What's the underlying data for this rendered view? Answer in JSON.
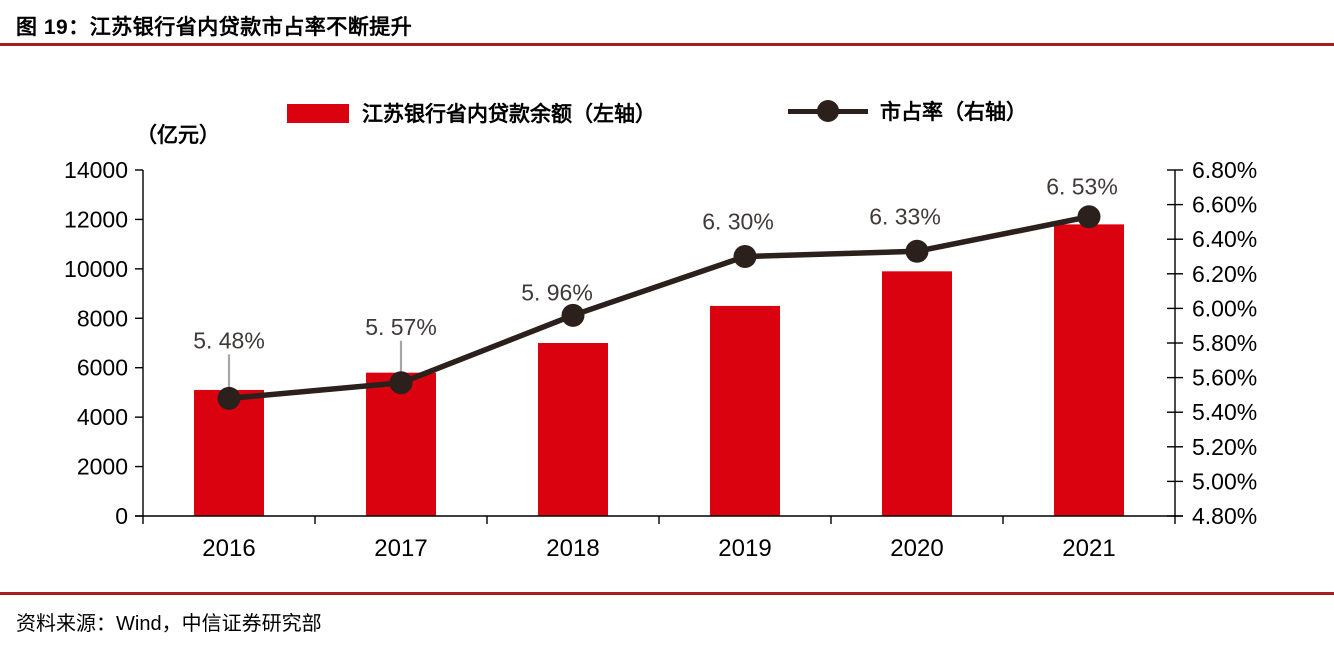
{
  "figure": {
    "title": "图 19：江苏银行省内贷款市占率不断提升",
    "source": "资料来源：Wind，中信证券研究部"
  },
  "colors": {
    "bar": "#da020f",
    "line": "#2b201b",
    "rule": "#a61e23",
    "value_label": "#3f3a39",
    "axis": "#000000",
    "leader": "#a6a6a6"
  },
  "chart_data": {
    "type": "bar",
    "combo": "bar+line",
    "title": "江苏银行省内贷款市占率不断提升",
    "categories": [
      "2016",
      "2017",
      "2018",
      "2019",
      "2020",
      "2021"
    ],
    "series": [
      {
        "name": "江苏银行省内贷款余额（左轴）",
        "type": "bar",
        "axis": "left",
        "values": [
          5100,
          5800,
          7000,
          8500,
          9900,
          11800
        ]
      },
      {
        "name": "市占率（右轴）",
        "type": "line",
        "axis": "right",
        "values": [
          5.48,
          5.57,
          5.96,
          6.3,
          6.33,
          6.53
        ],
        "point_labels": [
          "5. 48%",
          "5. 57%",
          "5. 96%",
          "6. 30%",
          "6. 33%",
          "6. 53%"
        ]
      }
    ],
    "left_axis": {
      "unit": "（亿元）",
      "min": 0,
      "max": 14000,
      "step": 2000,
      "tick_labels": [
        "0",
        "2000",
        "4000",
        "6000",
        "8000",
        "10000",
        "12000",
        "14000"
      ]
    },
    "right_axis": {
      "min": 4.8,
      "max": 6.8,
      "step": 0.2,
      "tick_labels": [
        "4.80%",
        "5.00%",
        "5.20%",
        "5.40%",
        "5.60%",
        "5.80%",
        "6.00%",
        "6.20%",
        "6.40%",
        "6.60%",
        "6.80%"
      ]
    },
    "legend": [
      {
        "label": "江苏银行省内贷款余额（左轴）",
        "marker": "bar"
      },
      {
        "label": "市占率（右轴）",
        "marker": "line-dot"
      }
    ],
    "layout_hints": {
      "grid": "off",
      "legend_position": "top",
      "label_dy": [
        58,
        56,
        23,
        35,
        35,
        30
      ],
      "label_dx": [
        0,
        0,
        -16,
        -7,
        -12,
        -7
      ],
      "leader_indices": [
        0,
        1
      ]
    }
  }
}
